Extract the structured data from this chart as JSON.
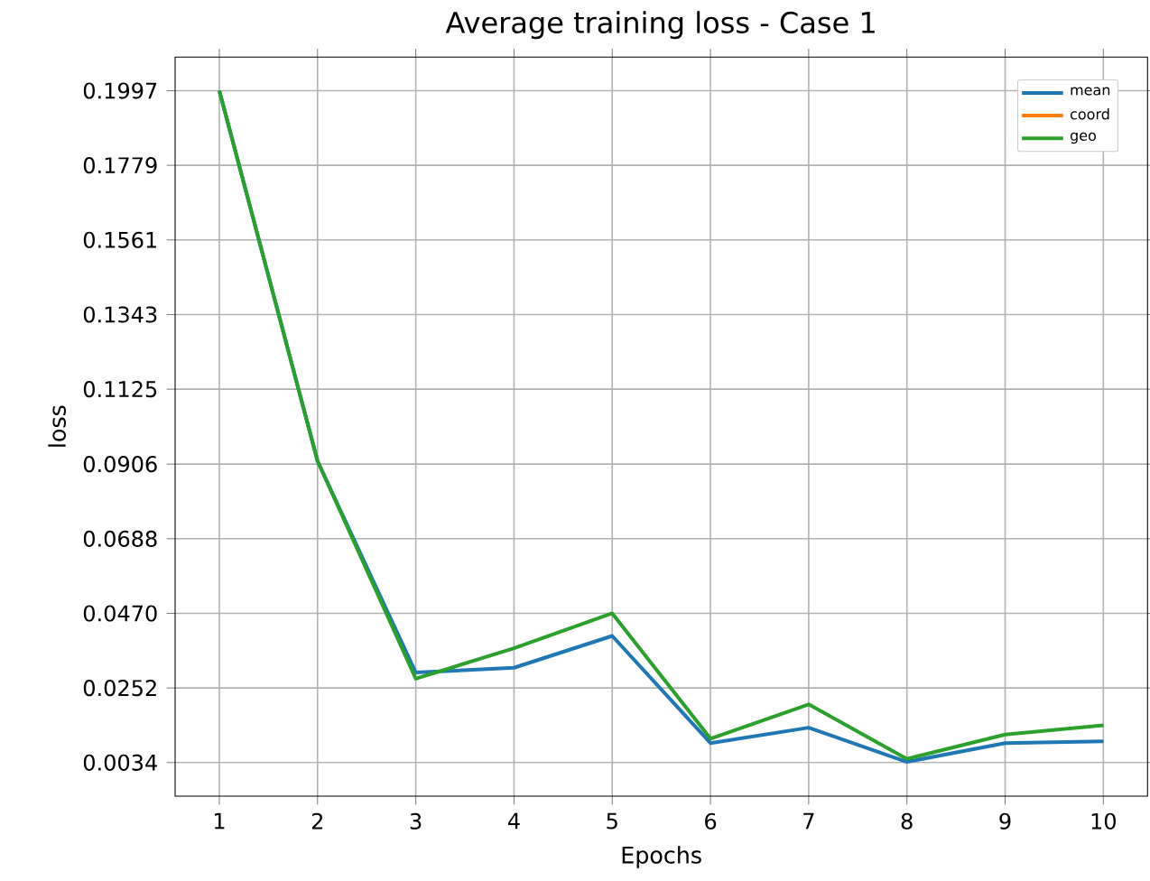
{
  "chart_data": {
    "type": "line",
    "title": "Average training loss - Case 1",
    "xlabel": "Epochs",
    "ylabel": "loss",
    "x": [
      1,
      2,
      3,
      4,
      5,
      6,
      7,
      8,
      9,
      10
    ],
    "series": [
      {
        "name": "mean",
        "color": "#1f77b4",
        "values": [
          0.1997,
          0.0915,
          0.0297,
          0.0311,
          0.0404,
          0.0091,
          0.0136,
          0.0036,
          0.0091,
          0.0096
        ]
      },
      {
        "name": "coord",
        "color": "#ff7f0e",
        "values": [
          null,
          null,
          null,
          null,
          null,
          null,
          null,
          null,
          null,
          null
        ]
      },
      {
        "name": "geo",
        "color": "#2ca02c",
        "values": [
          0.1997,
          0.0915,
          0.0279,
          0.0368,
          0.047,
          0.0104,
          0.0204,
          0.0045,
          0.0116,
          0.0143
        ]
      }
    ],
    "xlim": [
      0.55,
      10.45
    ],
    "ylim": [
      -0.0064,
      0.2095
    ],
    "xticks": [
      1,
      2,
      3,
      4,
      5,
      6,
      7,
      8,
      9,
      10
    ],
    "yticks": [
      {
        "value": 0.0034,
        "label": "0.0034"
      },
      {
        "value": 0.0252,
        "label": "0.0252"
      },
      {
        "value": 0.047,
        "label": "0.0470"
      },
      {
        "value": 0.0688,
        "label": "0.0688"
      },
      {
        "value": 0.0906,
        "label": "0.0906"
      },
      {
        "value": 0.1125,
        "label": "0.1125"
      },
      {
        "value": 0.1343,
        "label": "0.1343"
      },
      {
        "value": 0.1561,
        "label": "0.1561"
      },
      {
        "value": 0.1779,
        "label": "0.1779"
      },
      {
        "value": 0.1997,
        "label": "0.1997"
      }
    ],
    "grid": true,
    "legend": "top right"
  }
}
